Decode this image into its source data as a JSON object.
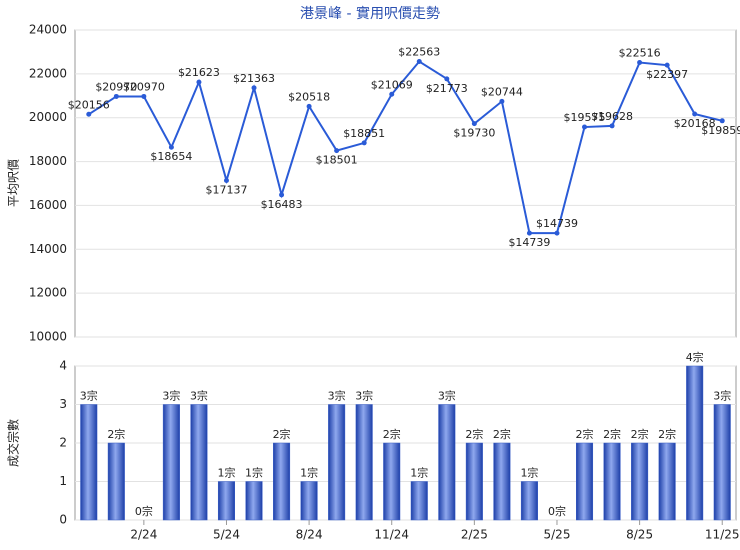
{
  "chart_data": [
    {
      "type": "line",
      "title": "港景峰 - 實用呎價走勢",
      "y_label": "平均呎價",
      "color": "#2a5bd7",
      "values": [
        20156,
        20970,
        20970,
        18654,
        21623,
        17137,
        21363,
        16483,
        20518,
        18501,
        18851,
        21069,
        22563,
        21773,
        19730,
        20744,
        14739,
        14739,
        19575,
        19628,
        22516,
        22397,
        20168,
        19859
      ],
      "value_labels": [
        "$20156",
        "$20970",
        "$20970",
        "$18654",
        "$21623",
        "$17137",
        "$21363",
        "$16483",
        "$20518",
        "$18501",
        "$18851",
        "$21069",
        "$22563",
        "$21773",
        "$19730",
        "$20744",
        "$14739",
        "$14739",
        "$19575",
        "$19628",
        "$22516",
        "$22397",
        "$20168",
        "$19859"
      ],
      "ylim": [
        10000,
        24000
      ],
      "yticks": [
        10000,
        12000,
        14000,
        16000,
        18000,
        20000,
        22000,
        24000
      ],
      "grid": true
    },
    {
      "type": "bar",
      "y_label": "成交宗數",
      "color": "#3a5fc8",
      "categories": [
        null,
        null,
        "2/24",
        null,
        null,
        "5/24",
        null,
        null,
        "8/24",
        null,
        null,
        "11/24",
        null,
        null,
        "2/25",
        null,
        null,
        "5/25",
        null,
        null,
        "8/25",
        null,
        null,
        "11/25"
      ],
      "values": [
        3,
        2,
        0,
        3,
        3,
        1,
        1,
        2,
        1,
        3,
        3,
        2,
        1,
        3,
        2,
        2,
        1,
        0,
        2,
        2,
        2,
        2,
        4,
        3
      ],
      "value_labels": [
        "3宗",
        "2宗",
        "0宗",
        "3宗",
        "3宗",
        "1宗",
        "1宗",
        "2宗",
        "1宗",
        "3宗",
        "3宗",
        "2宗",
        "1宗",
        "3宗",
        "2宗",
        "2宗",
        "1宗",
        "0宗",
        "2宗",
        "2宗",
        "2宗",
        "2宗",
        "4宗",
        "3宗"
      ],
      "ylim": [
        0,
        4
      ],
      "yticks": [
        0,
        1,
        2,
        3,
        4
      ],
      "grid": true
    }
  ]
}
